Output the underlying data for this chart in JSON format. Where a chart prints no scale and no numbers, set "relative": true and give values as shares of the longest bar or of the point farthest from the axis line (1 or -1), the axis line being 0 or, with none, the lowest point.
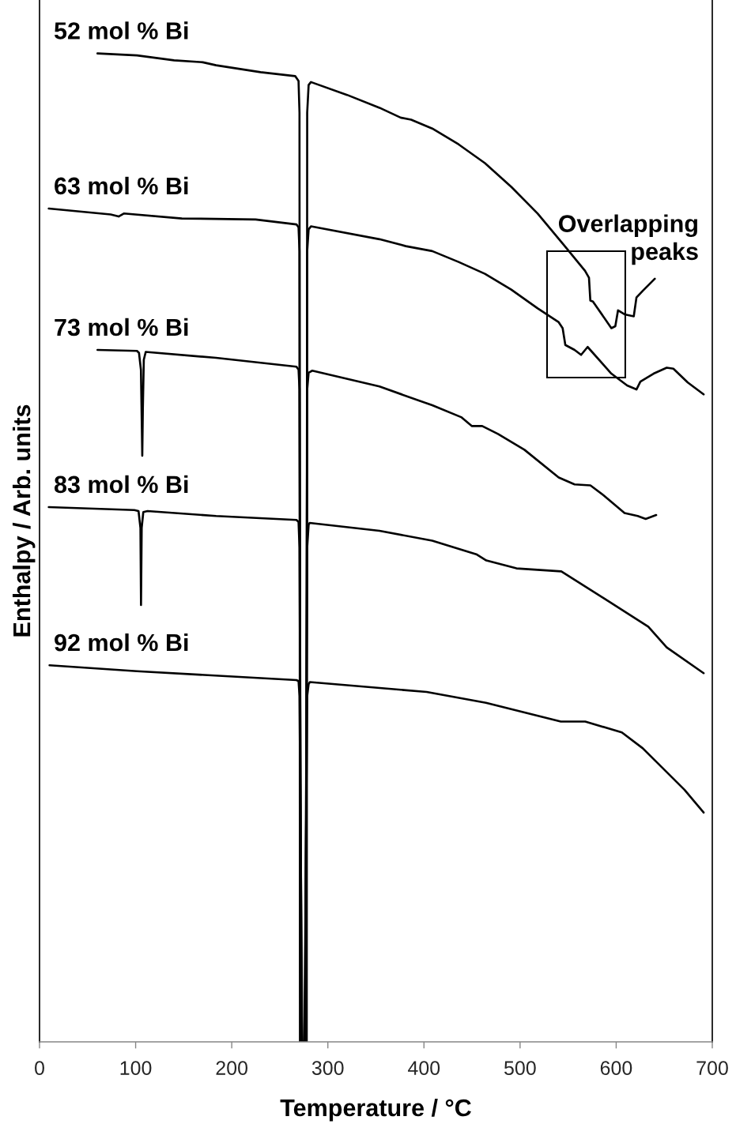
{
  "chart_data": {
    "type": "line",
    "xlabel": "Temperature / °C",
    "ylabel": "Enthalpy / Arb. units",
    "relative": true,
    "xlim": [
      0,
      700
    ],
    "xticks": [
      0,
      100,
      200,
      300,
      400,
      500,
      600,
      700
    ],
    "tick_labels": "x",
    "line_style": "solid",
    "series": [
      {
        "name": "52 mol % Bi",
        "color": "#000000",
        "x": [
          60.3,
          101.4,
          140,
          170,
          183.7,
          230,
          266,
          269.5,
          270.5,
          271.0,
          278.0,
          278.5,
          280,
          282.4,
          320,
          353.7,
          375.7,
          386.6,
          408.6,
          436,
          463.4,
          490.8,
          518.3,
          545.7,
          567.6,
          571.7,
          573.1,
          575.8,
          595,
          599.1,
          601.9,
          608.7,
          618.3,
          621.1,
          627.9,
          640.2
        ],
        "values": [
          1.0,
          0.998,
          0.993,
          0.991,
          0.988,
          0.981,
          0.977,
          0.972,
          0.94,
          0,
          0,
          0.94,
          0.968,
          0.971,
          0.958,
          0.945,
          0.935,
          0.933,
          0.924,
          0.908,
          0.889,
          0.865,
          0.838,
          0.806,
          0.78,
          0.773,
          0.75,
          0.749,
          0.722,
          0.724,
          0.74,
          0.736,
          0.734,
          0.753,
          0.76,
          0.772
        ]
      },
      {
        "name": "63 mol % Bi",
        "color": "#000000",
        "x": [
          9.6,
          74,
          82.3,
          87.7,
          148.1,
          224.8,
          267.3,
          269.5,
          270.5,
          271.6,
          277.4,
          278.5,
          280,
          282.4,
          353.7,
          381.1,
          408.6,
          436,
          463.4,
          490.8,
          518.3,
          540.2,
          544.3,
          547.1,
          556.7,
          563.5,
          570.3,
          595,
          611.4,
          621.1,
          625.2,
          638.9,
          652.6,
          659.5,
          674.5,
          691
        ],
        "values": [
          0.843,
          0.837,
          0.835,
          0.838,
          0.833,
          0.832,
          0.827,
          0.824,
          0.8,
          0,
          0,
          0.8,
          0.822,
          0.825,
          0.812,
          0.805,
          0.8,
          0.789,
          0.777,
          0.761,
          0.742,
          0.728,
          0.722,
          0.705,
          0.7,
          0.695,
          0.703,
          0.676,
          0.664,
          0.66,
          0.668,
          0.676,
          0.682,
          0.681,
          0.667,
          0.655
        ]
      },
      {
        "name": "73 mol % Bi",
        "color": "#000000",
        "x": [
          60.3,
          101.4,
          103.5,
          105.5,
          106.5,
          106.9,
          107.5,
          108.5,
          110.5,
          183.7,
          267.3,
          269.5,
          270.5,
          272.2,
          276.8,
          278.5,
          280,
          283.8,
          353.7,
          408.6,
          438.7,
          449.7,
          460.6,
          477,
          504.5,
          540.2,
          556.7,
          573.2,
          586.8,
          608.7,
          622.4,
          630.7,
          641.6
        ],
        "values": [
          0.7,
          0.699,
          0.697,
          0.68,
          0.62,
          0.593,
          0.64,
          0.69,
          0.698,
          0.692,
          0.683,
          0.68,
          0.66,
          0,
          0,
          0.66,
          0.677,
          0.679,
          0.663,
          0.644,
          0.632,
          0.623,
          0.623,
          0.615,
          0.599,
          0.571,
          0.564,
          0.563,
          0.553,
          0.535,
          0.532,
          0.529,
          0.533
        ]
      },
      {
        "name": "83 mol % Bi",
        "color": "#000000",
        "x": [
          9.6,
          98.7,
          103,
          105,
          105.6,
          106.3,
          108,
          112.4,
          183.7,
          267.3,
          269.5,
          270.5,
          272.8,
          276.2,
          278.5,
          280,
          281,
          353.7,
          408.6,
          455.1,
          464.9,
          496.3,
          542.9,
          586.8,
          633.4,
          652.6,
          691
        ],
        "values": [
          0.541,
          0.538,
          0.537,
          0.52,
          0.442,
          0.52,
          0.536,
          0.537,
          0.532,
          0.528,
          0.526,
          0.5,
          0,
          0,
          0.5,
          0.523,
          0.525,
          0.517,
          0.507,
          0.493,
          0.487,
          0.479,
          0.476,
          0.449,
          0.42,
          0.399,
          0.373
        ]
      },
      {
        "name": "92 mol % Bi",
        "color": "#000000",
        "x": [
          10.4,
          101.4,
          267.3,
          269.5,
          270.5,
          273.4,
          275.6,
          278.5,
          280,
          281.3,
          402.8,
          464.5,
          542.4,
          567.8,
          605.9,
          627.7,
          671.1,
          691
        ],
        "values": [
          0.381,
          0.375,
          0.366,
          0.365,
          0.35,
          0,
          0,
          0.35,
          0.362,
          0.364,
          0.354,
          0.343,
          0.324,
          0.324,
          0.313,
          0.297,
          0.255,
          0.232
        ]
      }
    ],
    "annotations": [
      "Overlapping\npeaks"
    ]
  }
}
